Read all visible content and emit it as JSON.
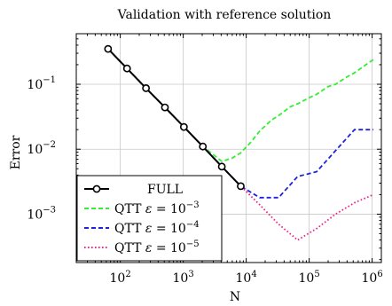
{
  "chart_data": {
    "type": "line",
    "title": "Validation with reference solution",
    "xlabel": "N",
    "ylabel": "Error",
    "xscale": "log",
    "yscale": "log",
    "xlim": [
      20,
      1400000
    ],
    "ylim": [
      0.00018,
      0.6
    ],
    "grid": true,
    "legend_position": "bottom-left",
    "x_ticks": [
      {
        "value": 100,
        "label_base": "10",
        "label_exp": "2"
      },
      {
        "value": 1000,
        "label_base": "10",
        "label_exp": "3"
      },
      {
        "value": 10000,
        "label_base": "10",
        "label_exp": "4"
      },
      {
        "value": 100000,
        "label_base": "10",
        "label_exp": "5"
      },
      {
        "value": 1000000,
        "label_base": "10",
        "label_exp": "6"
      }
    ],
    "y_ticks": [
      {
        "value": 0.1,
        "label_base": "10",
        "label_exp": "−1"
      },
      {
        "value": 0.01,
        "label_base": "10",
        "label_exp": "−2"
      },
      {
        "value": 0.001,
        "label_base": "10",
        "label_exp": "−3"
      }
    ],
    "series": [
      {
        "name": "FULL",
        "color": "#000000",
        "style": "solid-circle-markers",
        "x": [
          64,
          128,
          256,
          512,
          1024,
          2048,
          4096,
          8192
        ],
        "y": [
          0.35,
          0.175,
          0.087,
          0.044,
          0.022,
          0.011,
          0.0054,
          0.0027
        ]
      },
      {
        "name": "QTT ε = 10−3",
        "legend_base": "QTT ",
        "legend_eps": "ε",
        "legend_mid": " = 10",
        "legend_exp": "−3",
        "color": "#33ee33",
        "style": "dashed",
        "x": [
          64,
          128,
          256,
          512,
          1024,
          2048,
          4096,
          6000,
          8192,
          12000,
          16384,
          25000,
          32768,
          50000,
          65536,
          100000,
          131072,
          200000,
          262144,
          400000,
          524288,
          800000,
          1048576
        ],
        "y": [
          0.35,
          0.175,
          0.087,
          0.044,
          0.022,
          0.011,
          0.0065,
          0.0073,
          0.0088,
          0.013,
          0.019,
          0.028,
          0.033,
          0.045,
          0.05,
          0.062,
          0.07,
          0.092,
          0.1,
          0.13,
          0.15,
          0.2,
          0.24
        ]
      },
      {
        "name": "QTT ε = 10−4",
        "legend_base": "QTT ",
        "legend_eps": "ε",
        "legend_mid": " = 10",
        "legend_exp": "−4",
        "color": "#2222dd",
        "style": "dashed",
        "x": [
          64,
          128,
          256,
          512,
          1024,
          2048,
          4096,
          8192,
          16384,
          32768,
          65536,
          131072,
          262144,
          524288,
          1048576
        ],
        "y": [
          0.35,
          0.175,
          0.087,
          0.044,
          0.022,
          0.011,
          0.0054,
          0.0027,
          0.0018,
          0.0018,
          0.0038,
          0.0045,
          0.0095,
          0.02,
          0.02
        ]
      },
      {
        "name": "QTT ε = 10−5",
        "legend_base": "QTT ",
        "legend_eps": "ε",
        "legend_mid": " = 10",
        "legend_exp": "−5",
        "color": "#ee2288",
        "style": "dotted",
        "x": [
          64,
          128,
          256,
          512,
          1024,
          2048,
          4096,
          8192,
          16384,
          32768,
          65536,
          131072,
          262144,
          524288,
          1048576
        ],
        "y": [
          0.35,
          0.175,
          0.087,
          0.044,
          0.022,
          0.011,
          0.0054,
          0.0027,
          0.0014,
          0.0007,
          0.0004,
          0.0006,
          0.001,
          0.0015,
          0.002
        ]
      }
    ]
  }
}
